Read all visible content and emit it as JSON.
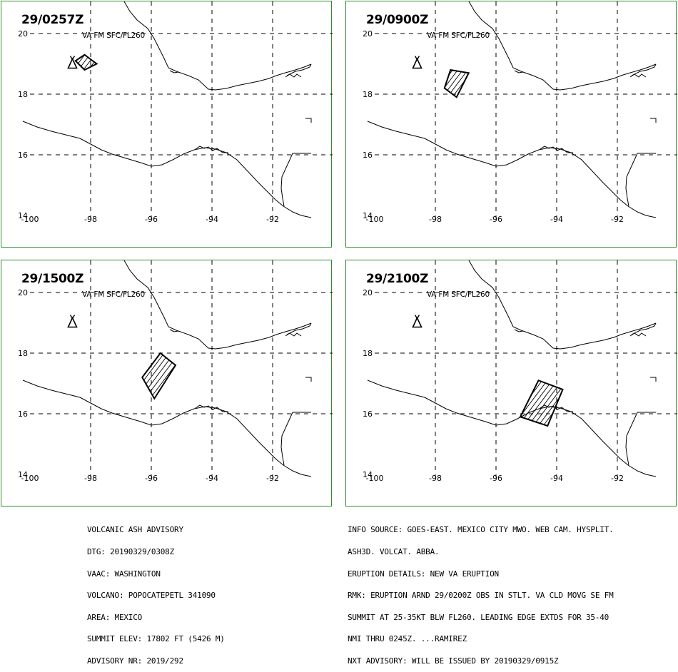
{
  "panels": [
    {
      "time": "29/0257Z",
      "level": "VA FM SFC/FL260",
      "cloud": [
        [
          -98.5,
          19.1
        ],
        [
          -98.2,
          18.8
        ],
        [
          -97.8,
          19.0
        ],
        [
          -98.2,
          19.3
        ]
      ]
    },
    {
      "time": "29/0900Z",
      "level": "VA FM SFC/FL260",
      "cloud": [
        [
          -97.5,
          18.8
        ],
        [
          -96.9,
          18.7
        ],
        [
          -97.3,
          17.9
        ],
        [
          -97.7,
          18.2
        ]
      ]
    },
    {
      "time": "29/1500Z",
      "level": "VA FM SFC/FL260",
      "cloud": [
        [
          -95.7,
          18.0
        ],
        [
          -95.2,
          17.6
        ],
        [
          -95.9,
          16.5
        ],
        [
          -96.3,
          17.2
        ]
      ]
    },
    {
      "time": "29/2100Z",
      "level": "VA FM SFC/FL260",
      "cloud": [
        [
          -94.6,
          17.1
        ],
        [
          -93.8,
          16.8
        ],
        [
          -94.3,
          15.6
        ],
        [
          -95.2,
          15.9
        ]
      ]
    }
  ],
  "map": {
    "x_ticks": [
      "-100",
      "-98",
      "-96",
      "-94",
      "-92"
    ],
    "y_ticks": [
      "20",
      "18",
      "16",
      "14"
    ],
    "volcano_symbol": "volcano-triangle-icon",
    "volcano_lonlat": [
      -98.6,
      19.0
    ],
    "colors": {
      "frame": "#2e8b2e",
      "lines": "#000000"
    }
  },
  "advisory_left": [
    "VOLCANIC ASH ADVISORY",
    "DTG: 20190329/0308Z",
    "VAAC: WASHINGTON",
    "VOLCANO: POPOCATEPETL 341090",
    "AREA: MEXICO",
    "SUMMIT ELEV: 17802 FT (5426 M)",
    "ADVISORY NR: 2019/292"
  ],
  "advisory_right": [
    "INFO SOURCE: GOES-EAST. MEXICO CITY MWO. WEB CAM. HYSPLIT.",
    "ASH3D. VOLCAT. ABBA.",
    "ERUPTION DETAILS: NEW VA ERUPTION",
    "RMK: ERUPTION ARND 29/0200Z OBS IN STLT. VA CLD MOVG SE FM",
    "SUMMIT AT 25-35KT BLW FL260. LEADING EDGE EXTDS FOR 35-40",
    "NMI THRU 0245Z. ...RAMIREZ",
    "NXT ADVISORY: WILL BE ISSUED BY 20190329/0915Z"
  ]
}
